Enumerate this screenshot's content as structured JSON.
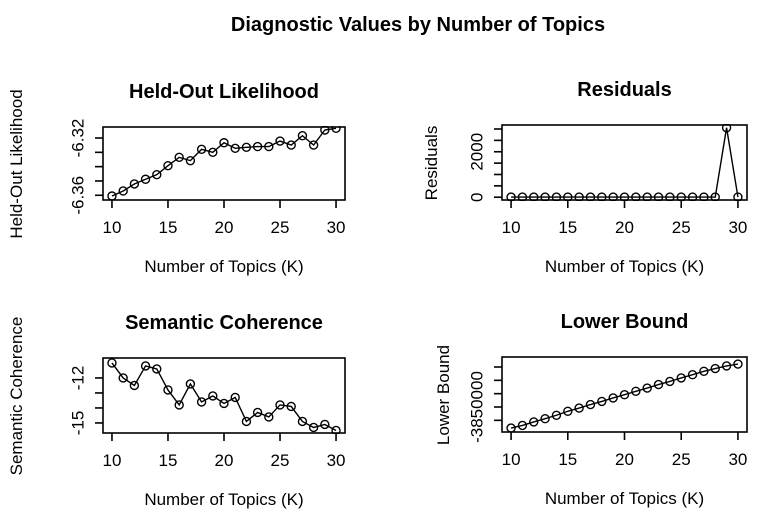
{
  "page": {
    "title": "Diagnostic Values by Number of Topics",
    "background_color": "#ffffff",
    "line_color": "#000000",
    "text_color": "#000000"
  },
  "chart_data": [
    {
      "id": "held-out-likelihood",
      "type": "line",
      "marker": "open-circle",
      "grid": false,
      "legend": "none",
      "title": "Held-Out Likelihood",
      "xlabel": "Number of Topics (K)",
      "ylabel": "Held-Out Likelihood",
      "x": [
        10,
        11,
        12,
        13,
        14,
        15,
        16,
        17,
        18,
        19,
        20,
        21,
        22,
        23,
        24,
        25,
        26,
        27,
        28,
        29,
        30
      ],
      "values": [
        -6.3605,
        -6.357,
        -6.3521,
        -6.3488,
        -6.3456,
        -6.3393,
        -6.3335,
        -6.3358,
        -6.3279,
        -6.33,
        -6.3233,
        -6.3272,
        -6.3265,
        -6.326,
        -6.326,
        -6.3221,
        -6.3249,
        -6.3184,
        -6.3249,
        -6.3144,
        -6.3132
      ],
      "xlim": [
        9.2,
        30.8
      ],
      "ylim": [
        -6.3633,
        -6.3123
      ],
      "xticks": [
        {
          "v": 10,
          "label": "10"
        },
        {
          "v": 15,
          "label": "15"
        },
        {
          "v": 20,
          "label": "20"
        },
        {
          "v": 25,
          "label": "25"
        },
        {
          "v": 30,
          "label": "30"
        }
      ],
      "yticks": [
        {
          "v": -6.32,
          "label": "-6.32"
        },
        {
          "v": -6.33,
          "label": ""
        },
        {
          "v": -6.34,
          "label": ""
        },
        {
          "v": -6.35,
          "label": ""
        },
        {
          "v": -6.36,
          "label": "-6.36"
        }
      ]
    },
    {
      "id": "residuals",
      "type": "line",
      "marker": "open-circle",
      "grid": false,
      "legend": "none",
      "title": "Residuals",
      "xlabel": "Number of Topics (K)",
      "ylabel": "Residuals",
      "x": [
        10,
        11,
        12,
        13,
        14,
        15,
        16,
        17,
        18,
        19,
        20,
        21,
        22,
        23,
        24,
        25,
        26,
        27,
        28,
        29,
        30
      ],
      "values": [
        8,
        7,
        6,
        7,
        6,
        7,
        6,
        6,
        7,
        6,
        6,
        7,
        6,
        6,
        7,
        6,
        6,
        7,
        8,
        3054,
        9
      ],
      "xlim": [
        9.2,
        30.8
      ],
      "ylim": [
        -122,
        3176
      ],
      "xticks": [
        {
          "v": 10,
          "label": "10"
        },
        {
          "v": 15,
          "label": "15"
        },
        {
          "v": 20,
          "label": "20"
        },
        {
          "v": 25,
          "label": "25"
        },
        {
          "v": 30,
          "label": "30"
        }
      ],
      "yticks": [
        {
          "v": 0,
          "label": "0"
        },
        {
          "v": 500,
          "label": ""
        },
        {
          "v": 1000,
          "label": ""
        },
        {
          "v": 1500,
          "label": ""
        },
        {
          "v": 2000,
          "label": "2000"
        },
        {
          "v": 2500,
          "label": ""
        },
        {
          "v": 3000,
          "label": ""
        }
      ]
    },
    {
      "id": "semantic-coherence",
      "type": "line",
      "marker": "open-circle",
      "grid": false,
      "legend": "none",
      "title": "Semantic Coherence",
      "xlabel": "Number of Topics (K)",
      "ylabel": "Semantic Coherence",
      "x": [
        10,
        11,
        12,
        13,
        14,
        15,
        16,
        17,
        18,
        19,
        20,
        21,
        22,
        23,
        24,
        25,
        26,
        27,
        28,
        29,
        30
      ],
      "values": [
        -11.0,
        -12.0,
        -12.5,
        -11.2,
        -11.4,
        -12.8,
        -13.8,
        -12.4,
        -13.6,
        -13.2,
        -13.7,
        -13.3,
        -14.9,
        -14.3,
        -14.6,
        -13.8,
        -13.9,
        -14.9,
        -15.3,
        -15.1,
        -15.5
      ],
      "xlim": [
        9.2,
        30.8
      ],
      "ylim": [
        -15.67,
        -10.67
      ],
      "xticks": [
        {
          "v": 10,
          "label": "10"
        },
        {
          "v": 15,
          "label": "15"
        },
        {
          "v": 20,
          "label": "20"
        },
        {
          "v": 25,
          "label": "25"
        },
        {
          "v": 30,
          "label": "30"
        }
      ],
      "yticks": [
        {
          "v": -12,
          "label": "-12"
        },
        {
          "v": -13,
          "label": ""
        },
        {
          "v": -14,
          "label": ""
        },
        {
          "v": -15,
          "label": "-15"
        }
      ]
    },
    {
      "id": "lower-bound",
      "type": "line",
      "marker": "open-circle",
      "grid": false,
      "legend": "none",
      "title": "Lower Bound",
      "xlabel": "Number of Topics (K)",
      "ylabel": "Lower Bound",
      "x": [
        10,
        11,
        12,
        13,
        14,
        15,
        16,
        17,
        18,
        19,
        20,
        21,
        22,
        23,
        24,
        25,
        26,
        27,
        28,
        29,
        30
      ],
      "values": [
        -3857900,
        -3856900,
        -3855600,
        -3854400,
        -3853100,
        -3851600,
        -3850400,
        -3849100,
        -3847900,
        -3846600,
        -3845400,
        -3844100,
        -3842900,
        -3841600,
        -3840400,
        -3839100,
        -3837900,
        -3836600,
        -3835600,
        -3834600,
        -3833900
      ],
      "xlim": [
        9.2,
        30.8
      ],
      "ylim": [
        -3859375,
        -3831250
      ],
      "xticks": [
        {
          "v": 10,
          "label": "10"
        },
        {
          "v": 15,
          "label": "15"
        },
        {
          "v": 20,
          "label": "20"
        },
        {
          "v": 25,
          "label": "25"
        },
        {
          "v": 30,
          "label": "30"
        }
      ],
      "yticks": [
        {
          "v": -3835000,
          "label": ""
        },
        {
          "v": -3840000,
          "label": ""
        },
        {
          "v": -3845000,
          "label": ""
        },
        {
          "v": -3850000,
          "label": "-3850000"
        },
        {
          "v": -3855000,
          "label": ""
        }
      ]
    }
  ]
}
